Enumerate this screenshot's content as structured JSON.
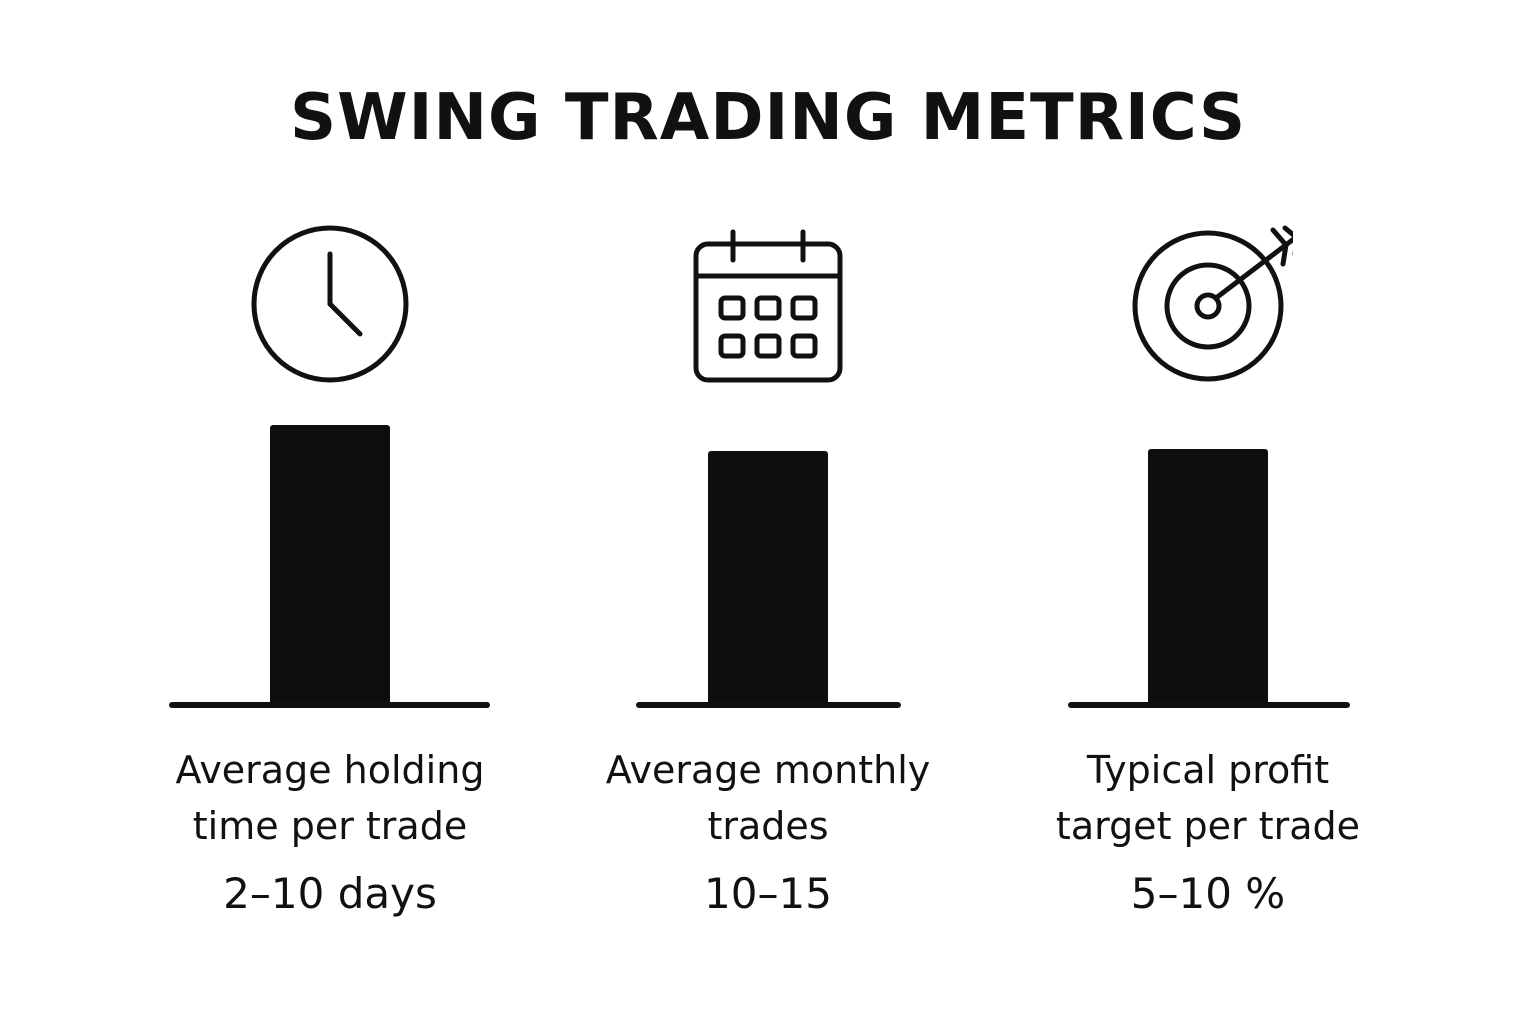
{
  "title": "SWING TRADING METRICS",
  "metrics": [
    {
      "icon": "clock-icon",
      "label": "Average holding\ntime per trade",
      "value": "2–10 days"
    },
    {
      "icon": "calendar-icon",
      "label": "Average monthly\ntrades",
      "value": "10–15"
    },
    {
      "icon": "target-arrow-icon",
      "label": "Typical profit\ntarget per trade",
      "value": "5–10 %"
    }
  ],
  "colors": {
    "ink": "#111111",
    "bar": "#0d0f0d",
    "background": "#ffffff"
  }
}
